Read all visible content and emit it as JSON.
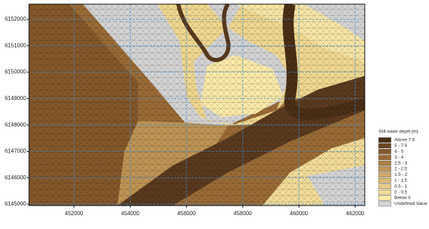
{
  "chart_data": {
    "type": "map",
    "legend_title": "Still water depth [m]",
    "legend": [
      {
        "label": "Above 7.5",
        "color": "#4a2f16"
      },
      {
        "label": "5 - 7.5",
        "color": "#6b4520"
      },
      {
        "label": "4 - 5",
        "color": "#85582b"
      },
      {
        "label": "3 - 4",
        "color": "#9a6b36"
      },
      {
        "label": "2.5 - 3",
        "color": "#ad7f44"
      },
      {
        "label": "2 - 2.5",
        "color": "#bf9455"
      },
      {
        "label": "1.5 - 2",
        "color": "#cfa867"
      },
      {
        "label": "1 - 1.5",
        "color": "#dcbb77"
      },
      {
        "label": "0.5 - 1",
        "color": "#e8cc88"
      },
      {
        "label": "0 - 0.5",
        "color": "#f2dc98"
      },
      {
        "label": "Below 0",
        "color": "#fbeaa8"
      },
      {
        "label": "Undefined Value",
        "color": "#d4d4d4"
      }
    ],
    "xlim": [
      450400,
      462340
    ],
    "ylim": [
      6144950,
      6152575
    ],
    "xticks": [
      452000,
      454000,
      456000,
      458000,
      460000,
      462000
    ],
    "yticks": [
      6145000,
      6146000,
      6147000,
      6148000,
      6149000,
      6150000,
      6151000,
      6152000
    ],
    "grid": true
  }
}
